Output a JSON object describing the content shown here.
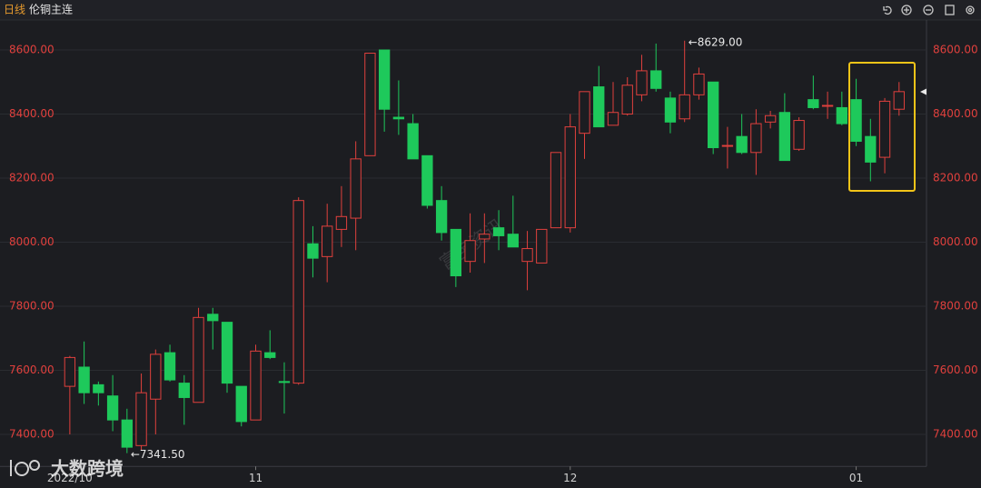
{
  "header": {
    "period": "日线",
    "symbol": "伦铜主连"
  },
  "watermarks": [
    "富宝资讯",
    "大数跨境"
  ],
  "chart_data": {
    "type": "candlestick",
    "categories": [
      "2022/10",
      null,
      null,
      null,
      null,
      null,
      null,
      null,
      null,
      null,
      null,
      null,
      null,
      "11",
      null,
      null,
      null,
      null,
      null,
      null,
      null,
      null,
      null,
      null,
      null,
      null,
      null,
      null,
      null,
      null,
      null,
      null,
      null,
      null,
      null,
      "12",
      null,
      null,
      null,
      null,
      null,
      null,
      null,
      null,
      null,
      null,
      null,
      null,
      null,
      null,
      null,
      null,
      null,
      null,
      null,
      "01",
      null,
      null,
      null
    ],
    "open": [
      7550,
      7610,
      7555,
      7520,
      7445,
      7365,
      7510,
      7655,
      7560,
      7500,
      7775,
      7750,
      7550,
      7445,
      7655,
      7565,
      7560,
      7995,
      7955,
      8040,
      8075,
      8270,
      8600,
      8390,
      8370,
      8270,
      8130,
      8040,
      7940,
      8010,
      8045,
      8025,
      7940,
      7935,
      8045,
      8045,
      8340,
      8485,
      8365,
      8400,
      8460,
      8535,
      8450,
      8385,
      8460,
      8500,
      8300,
      8330,
      8280,
      8375,
      8405,
      8290,
      8445,
      8425,
      8420,
      8445,
      8330,
      8265,
      8415
    ],
    "high": [
      7645,
      7690,
      7565,
      7585,
      7480,
      7590,
      7665,
      7680,
      7585,
      7795,
      7795,
      7750,
      7550,
      7680,
      7725,
      7625,
      8140,
      8050,
      8120,
      8175,
      8315,
      8590,
      8600,
      8505,
      8400,
      8270,
      8175,
      8040,
      8090,
      8090,
      8100,
      8145,
      8035,
      8040,
      8280,
      8400,
      8470,
      8550,
      8500,
      8515,
      8585,
      8620,
      8470,
      8629,
      8545,
      8500,
      8360,
      8400,
      8415,
      8410,
      8465,
      8390,
      8520,
      8470,
      8470,
      8510,
      8385,
      8450,
      8500
    ],
    "low": [
      7400,
      7495,
      7490,
      7410,
      7341.5,
      7350,
      7400,
      7565,
      7430,
      7500,
      7665,
      7530,
      7425,
      7445,
      7635,
      7465,
      7555,
      7890,
      7875,
      7985,
      7975,
      8270,
      8345,
      8335,
      8260,
      8105,
      8005,
      7860,
      7905,
      7935,
      7975,
      7985,
      7850,
      7935,
      8045,
      8030,
      8260,
      8360,
      8365,
      8395,
      8440,
      8470,
      8340,
      8375,
      8445,
      8275,
      8230,
      8275,
      8210,
      8355,
      8255,
      8285,
      8415,
      8385,
      8365,
      8300,
      8190,
      8215,
      8395
    ],
    "close": [
      7640,
      7530,
      7530,
      7445,
      7360,
      7530,
      7650,
      7570,
      7515,
      7765,
      7755,
      7560,
      7440,
      7660,
      7640,
      7562,
      8130,
      7950,
      8050,
      8080,
      8260,
      8590,
      8415,
      8385,
      8260,
      8115,
      8030,
      7895,
      8005,
      8025,
      8020,
      7985,
      7980,
      8040,
      8280,
      8360,
      8470,
      8360,
      8405,
      8490,
      8535,
      8480,
      8375,
      8460,
      8525,
      8295,
      8302,
      8280,
      8370,
      8395,
      8255,
      8380,
      8420,
      8427,
      8370,
      8315,
      8250,
      8440,
      8470
    ],
    "up_color": "#e0403d",
    "down_color": "#1ec95b",
    "ylim": [
      7300,
      8700
    ],
    "yticks": [
      {
        "value": 7400,
        "label": "7400.00"
      },
      {
        "value": 7600,
        "label": "7600.00"
      },
      {
        "value": 7800,
        "label": "7800.00"
      },
      {
        "value": 8000,
        "label": "8000.00"
      },
      {
        "value": 8200,
        "label": "8200.00"
      },
      {
        "value": 8400,
        "label": "8400.00"
      },
      {
        "value": 8600,
        "label": "8600.00"
      }
    ],
    "grid": true,
    "annotations": [
      {
        "value": 8629,
        "label": "←8629.00"
      },
      {
        "value": 7341.5,
        "label": "←7341.50"
      }
    ]
  }
}
